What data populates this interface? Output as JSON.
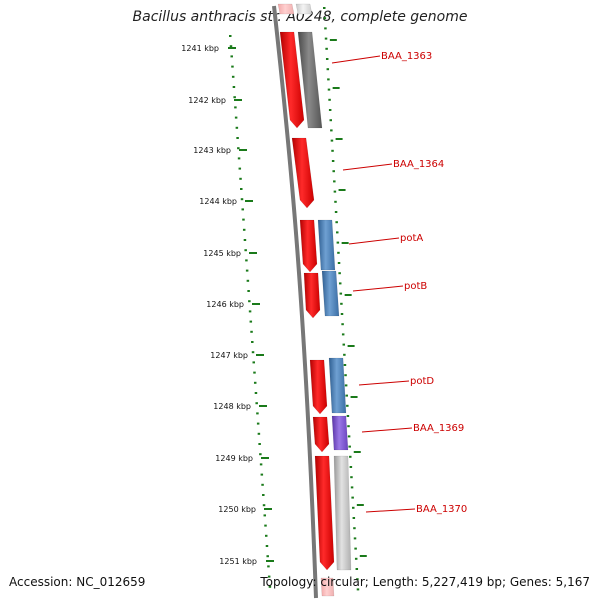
{
  "title": "Bacillus anthracis str. A0248, complete genome",
  "footer": {
    "accession": "Accession: NC_012659",
    "topology": "Topology: circular; Length: 5,227,419 bp; Genes: 5,167"
  },
  "axis_ticks": [
    "1241 kbp",
    "1242 kbp",
    "1243 kbp",
    "1244 kbp",
    "1245 kbp",
    "1246 kbp",
    "1247 kbp",
    "1248 kbp",
    "1249 kbp",
    "1250 kbp",
    "1251 kbp"
  ],
  "genes": [
    {
      "label": "BAA_1363",
      "color": "#666666"
    },
    {
      "label": "BAA_1364",
      "color": ""
    },
    {
      "label": "potA",
      "color": "#4a7fb5"
    },
    {
      "label": "potB",
      "color": "#4a7fb5"
    },
    {
      "label": "potD",
      "color": "#4a7fb5"
    },
    {
      "label": "BAA_1369",
      "color": "#7b52cc"
    },
    {
      "label": "BAA_1370",
      "color": "#bdbdbd"
    }
  ],
  "colors": {
    "cds": "#ee0000",
    "tick": "#1a7a1a",
    "backbone": "#777777",
    "label": "#cc0000"
  }
}
